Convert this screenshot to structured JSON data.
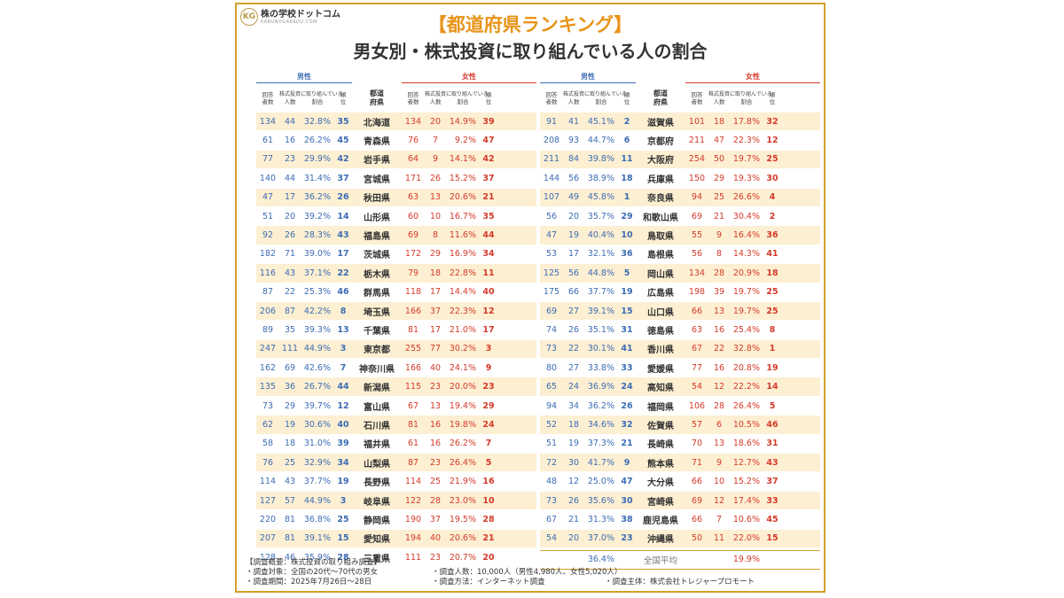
{
  "brand": {
    "name": "株の学校ドットコム",
    "url": "KABUNOGAKKOU.COM",
    "logo": "KG"
  },
  "title": {
    "line1": "【都道府県ランキング】",
    "line2": "男女別・株式投資に取り組んでいる人の割合"
  },
  "headers": {
    "male": "男性",
    "female": "女性",
    "respondents": "回答者数",
    "investors": "株式投資に取り組んでいる人数",
    "ratio": "割合",
    "rank": "順位",
    "prefecture": "都道府県",
    "respondents_l1": "回答",
    "respondents_l2": "者数",
    "investors_top": "株式投資に取り組んでいる",
    "investors_sub": "人数",
    "ratio_sub": "割合",
    "rank_l1": "順",
    "rank_l2": "位",
    "pref_l1": "都道",
    "pref_l2": "府県"
  },
  "left_rows": [
    {
      "pref": "北海道",
      "m_n": "134",
      "m_i": "44",
      "m_p": "32.8%",
      "m_r": "35",
      "f_n": "134",
      "f_i": "20",
      "f_p": "14.9%",
      "f_r": "39"
    },
    {
      "pref": "青森県",
      "m_n": "61",
      "m_i": "16",
      "m_p": "26.2%",
      "m_r": "45",
      "f_n": "76",
      "f_i": "7",
      "f_p": "9.2%",
      "f_r": "47"
    },
    {
      "pref": "岩手県",
      "m_n": "77",
      "m_i": "23",
      "m_p": "29.9%",
      "m_r": "42",
      "f_n": "64",
      "f_i": "9",
      "f_p": "14.1%",
      "f_r": "42"
    },
    {
      "pref": "宮城県",
      "m_n": "140",
      "m_i": "44",
      "m_p": "31.4%",
      "m_r": "37",
      "f_n": "171",
      "f_i": "26",
      "f_p": "15.2%",
      "f_r": "37"
    },
    {
      "pref": "秋田県",
      "m_n": "47",
      "m_i": "17",
      "m_p": "36.2%",
      "m_r": "26",
      "f_n": "63",
      "f_i": "13",
      "f_p": "20.6%",
      "f_r": "21"
    },
    {
      "pref": "山形県",
      "m_n": "51",
      "m_i": "20",
      "m_p": "39.2%",
      "m_r": "14",
      "f_n": "60",
      "f_i": "10",
      "f_p": "16.7%",
      "f_r": "35"
    },
    {
      "pref": "福島県",
      "m_n": "92",
      "m_i": "26",
      "m_p": "28.3%",
      "m_r": "43",
      "f_n": "69",
      "f_i": "8",
      "f_p": "11.6%",
      "f_r": "44"
    },
    {
      "pref": "茨城県",
      "m_n": "182",
      "m_i": "71",
      "m_p": "39.0%",
      "m_r": "17",
      "f_n": "172",
      "f_i": "29",
      "f_p": "16.9%",
      "f_r": "34"
    },
    {
      "pref": "栃木県",
      "m_n": "116",
      "m_i": "43",
      "m_p": "37.1%",
      "m_r": "22",
      "f_n": "79",
      "f_i": "18",
      "f_p": "22.8%",
      "f_r": "11"
    },
    {
      "pref": "群馬県",
      "m_n": "87",
      "m_i": "22",
      "m_p": "25.3%",
      "m_r": "46",
      "f_n": "118",
      "f_i": "17",
      "f_p": "14.4%",
      "f_r": "40"
    },
    {
      "pref": "埼玉県",
      "m_n": "206",
      "m_i": "87",
      "m_p": "42.2%",
      "m_r": "8",
      "f_n": "166",
      "f_i": "37",
      "f_p": "22.3%",
      "f_r": "12"
    },
    {
      "pref": "千葉県",
      "m_n": "89",
      "m_i": "35",
      "m_p": "39.3%",
      "m_r": "13",
      "f_n": "81",
      "f_i": "17",
      "f_p": "21.0%",
      "f_r": "17"
    },
    {
      "pref": "東京都",
      "m_n": "247",
      "m_i": "111",
      "m_p": "44.9%",
      "m_r": "3",
      "f_n": "255",
      "f_i": "77",
      "f_p": "30.2%",
      "f_r": "3"
    },
    {
      "pref": "神奈川県",
      "m_n": "162",
      "m_i": "69",
      "m_p": "42.6%",
      "m_r": "7",
      "f_n": "166",
      "f_i": "40",
      "f_p": "24.1%",
      "f_r": "9"
    },
    {
      "pref": "新潟県",
      "m_n": "135",
      "m_i": "36",
      "m_p": "26.7%",
      "m_r": "44",
      "f_n": "115",
      "f_i": "23",
      "f_p": "20.0%",
      "f_r": "23"
    },
    {
      "pref": "富山県",
      "m_n": "73",
      "m_i": "29",
      "m_p": "39.7%",
      "m_r": "12",
      "f_n": "67",
      "f_i": "13",
      "f_p": "19.4%",
      "f_r": "29"
    },
    {
      "pref": "石川県",
      "m_n": "62",
      "m_i": "19",
      "m_p": "30.6%",
      "m_r": "40",
      "f_n": "81",
      "f_i": "16",
      "f_p": "19.8%",
      "f_r": "24"
    },
    {
      "pref": "福井県",
      "m_n": "58",
      "m_i": "18",
      "m_p": "31.0%",
      "m_r": "39",
      "f_n": "61",
      "f_i": "16",
      "f_p": "26.2%",
      "f_r": "7"
    },
    {
      "pref": "山梨県",
      "m_n": "76",
      "m_i": "25",
      "m_p": "32.9%",
      "m_r": "34",
      "f_n": "87",
      "f_i": "23",
      "f_p": "26.4%",
      "f_r": "5"
    },
    {
      "pref": "長野県",
      "m_n": "114",
      "m_i": "43",
      "m_p": "37.7%",
      "m_r": "19",
      "f_n": "114",
      "f_i": "25",
      "f_p": "21.9%",
      "f_r": "16"
    },
    {
      "pref": "岐阜県",
      "m_n": "127",
      "m_i": "57",
      "m_p": "44.9%",
      "m_r": "3",
      "f_n": "122",
      "f_i": "28",
      "f_p": "23.0%",
      "f_r": "10"
    },
    {
      "pref": "静岡県",
      "m_n": "220",
      "m_i": "81",
      "m_p": "36.8%",
      "m_r": "25",
      "f_n": "190",
      "f_i": "37",
      "f_p": "19.5%",
      "f_r": "28"
    },
    {
      "pref": "愛知県",
      "m_n": "207",
      "m_i": "81",
      "m_p": "39.1%",
      "m_r": "15",
      "f_n": "194",
      "f_i": "40",
      "f_p": "20.6%",
      "f_r": "21"
    },
    {
      "pref": "三重県",
      "m_n": "128",
      "m_i": "46",
      "m_p": "35.9%",
      "m_r": "28",
      "f_n": "111",
      "f_i": "23",
      "f_p": "20.7%",
      "f_r": "20"
    }
  ],
  "right_rows": [
    {
      "pref": "滋賀県",
      "m_n": "91",
      "m_i": "41",
      "m_p": "45.1%",
      "m_r": "2",
      "f_n": "101",
      "f_i": "18",
      "f_p": "17.8%",
      "f_r": "32"
    },
    {
      "pref": "京都府",
      "m_n": "208",
      "m_i": "93",
      "m_p": "44.7%",
      "m_r": "6",
      "f_n": "211",
      "f_i": "47",
      "f_p": "22.3%",
      "f_r": "12"
    },
    {
      "pref": "大阪府",
      "m_n": "211",
      "m_i": "84",
      "m_p": "39.8%",
      "m_r": "11",
      "f_n": "254",
      "f_i": "50",
      "f_p": "19.7%",
      "f_r": "25"
    },
    {
      "pref": "兵庫県",
      "m_n": "144",
      "m_i": "56",
      "m_p": "38.9%",
      "m_r": "18",
      "f_n": "150",
      "f_i": "29",
      "f_p": "19.3%",
      "f_r": "30"
    },
    {
      "pref": "奈良県",
      "m_n": "107",
      "m_i": "49",
      "m_p": "45.8%",
      "m_r": "1",
      "f_n": "94",
      "f_i": "25",
      "f_p": "26.6%",
      "f_r": "4"
    },
    {
      "pref": "和歌山県",
      "m_n": "56",
      "m_i": "20",
      "m_p": "35.7%",
      "m_r": "29",
      "f_n": "69",
      "f_i": "21",
      "f_p": "30.4%",
      "f_r": "2"
    },
    {
      "pref": "鳥取県",
      "m_n": "47",
      "m_i": "19",
      "m_p": "40.4%",
      "m_r": "10",
      "f_n": "55",
      "f_i": "9",
      "f_p": "16.4%",
      "f_r": "36"
    },
    {
      "pref": "島根県",
      "m_n": "53",
      "m_i": "17",
      "m_p": "32.1%",
      "m_r": "36",
      "f_n": "56",
      "f_i": "8",
      "f_p": "14.3%",
      "f_r": "41"
    },
    {
      "pref": "岡山県",
      "m_n": "125",
      "m_i": "56",
      "m_p": "44.8%",
      "m_r": "5",
      "f_n": "134",
      "f_i": "28",
      "f_p": "20.9%",
      "f_r": "18"
    },
    {
      "pref": "広島県",
      "m_n": "175",
      "m_i": "66",
      "m_p": "37.7%",
      "m_r": "19",
      "f_n": "198",
      "f_i": "39",
      "f_p": "19.7%",
      "f_r": "25"
    },
    {
      "pref": "山口県",
      "m_n": "69",
      "m_i": "27",
      "m_p": "39.1%",
      "m_r": "15",
      "f_n": "66",
      "f_i": "13",
      "f_p": "19.7%",
      "f_r": "25"
    },
    {
      "pref": "徳島県",
      "m_n": "74",
      "m_i": "26",
      "m_p": "35.1%",
      "m_r": "31",
      "f_n": "63",
      "f_i": "16",
      "f_p": "25.4%",
      "f_r": "8"
    },
    {
      "pref": "香川県",
      "m_n": "73",
      "m_i": "22",
      "m_p": "30.1%",
      "m_r": "41",
      "f_n": "67",
      "f_i": "22",
      "f_p": "32.8%",
      "f_r": "1"
    },
    {
      "pref": "愛媛県",
      "m_n": "80",
      "m_i": "27",
      "m_p": "33.8%",
      "m_r": "33",
      "f_n": "77",
      "f_i": "16",
      "f_p": "20.8%",
      "f_r": "19"
    },
    {
      "pref": "高知県",
      "m_n": "65",
      "m_i": "24",
      "m_p": "36.9%",
      "m_r": "24",
      "f_n": "54",
      "f_i": "12",
      "f_p": "22.2%",
      "f_r": "14"
    },
    {
      "pref": "福岡県",
      "m_n": "94",
      "m_i": "34",
      "m_p": "36.2%",
      "m_r": "26",
      "f_n": "106",
      "f_i": "28",
      "f_p": "26.4%",
      "f_r": "5"
    },
    {
      "pref": "佐賀県",
      "m_n": "52",
      "m_i": "18",
      "m_p": "34.6%",
      "m_r": "32",
      "f_n": "57",
      "f_i": "6",
      "f_p": "10.5%",
      "f_r": "46"
    },
    {
      "pref": "長崎県",
      "m_n": "51",
      "m_i": "19",
      "m_p": "37.3%",
      "m_r": "21",
      "f_n": "70",
      "f_i": "13",
      "f_p": "18.6%",
      "f_r": "31"
    },
    {
      "pref": "熊本県",
      "m_n": "72",
      "m_i": "30",
      "m_p": "41.7%",
      "m_r": "9",
      "f_n": "71",
      "f_i": "9",
      "f_p": "12.7%",
      "f_r": "43"
    },
    {
      "pref": "大分県",
      "m_n": "48",
      "m_i": "12",
      "m_p": "25.0%",
      "m_r": "47",
      "f_n": "66",
      "f_i": "10",
      "f_p": "15.2%",
      "f_r": "37"
    },
    {
      "pref": "宮崎県",
      "m_n": "73",
      "m_i": "26",
      "m_p": "35.6%",
      "m_r": "30",
      "f_n": "69",
      "f_i": "12",
      "f_p": "17.4%",
      "f_r": "33"
    },
    {
      "pref": "鹿児島県",
      "m_n": "67",
      "m_i": "21",
      "m_p": "31.3%",
      "m_r": "38",
      "f_n": "66",
      "f_i": "7",
      "f_p": "10.6%",
      "f_r": "45"
    },
    {
      "pref": "沖縄県",
      "m_n": "54",
      "m_i": "20",
      "m_p": "37.0%",
      "m_r": "23",
      "f_n": "50",
      "f_i": "11",
      "f_p": "22.0%",
      "f_r": "15"
    }
  ],
  "national_average": {
    "label": "全国平均",
    "male": "36.4%",
    "female": "19.9%"
  },
  "survey": {
    "heading": "【調査概要：株式投資の取り組み調査】",
    "target": "・調査対象：全国の20代〜70代の男女",
    "count": "・調査人数：10,000人（男性4,980人、女性5,020人）",
    "period": "・調査期間：2025年7月26日〜28日",
    "method": "・調査方法：インターネット調査",
    "organizer": "・調査主体：株式会社トレジャープロモート"
  },
  "colors": {
    "male": "#3c6cb4",
    "female": "#d43a2a",
    "accent": "#e8941a",
    "border": "#d4a02a",
    "stripe": "#fdefd2"
  }
}
